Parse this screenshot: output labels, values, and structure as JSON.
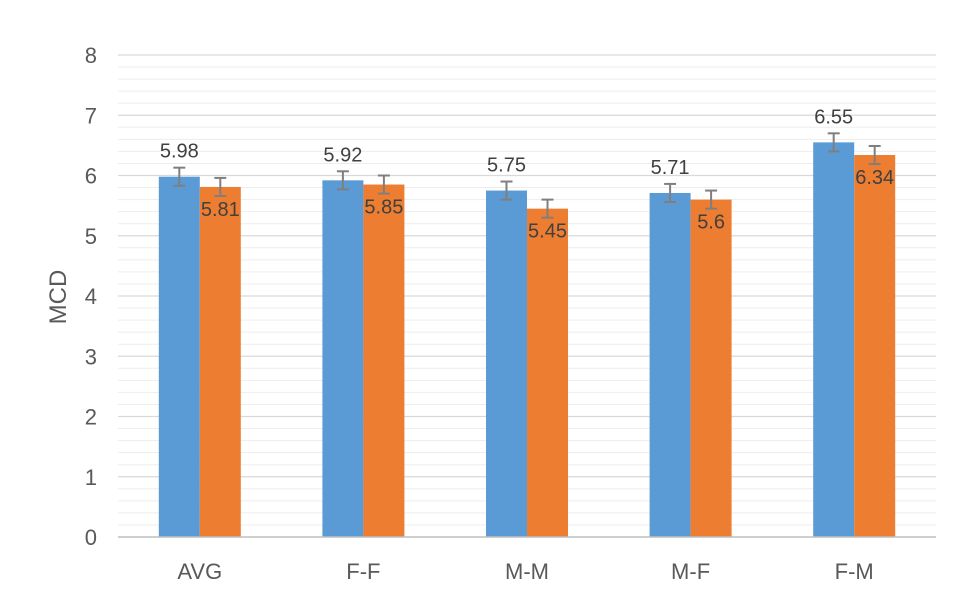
{
  "chart_data": {
    "type": "bar",
    "title": "",
    "xlabel": "",
    "ylabel": "MCD",
    "ylim": [
      0,
      8
    ],
    "yticks": [
      0,
      1,
      2,
      3,
      4,
      5,
      6,
      7,
      8
    ],
    "minor_grid_step": 0.2,
    "grid": true,
    "legend": "none",
    "categories": [
      "AVG",
      "F-F",
      "M-M",
      "M-F",
      "F-M"
    ],
    "series": [
      {
        "color": "#5B9BD5",
        "values": [
          5.98,
          5.92,
          5.75,
          5.71,
          6.55
        ],
        "data_labels": [
          "5.98",
          "5.92",
          "5.75",
          "5.71",
          "6.55"
        ],
        "error": [
          0.15,
          0.15,
          0.15,
          0.15,
          0.15
        ]
      },
      {
        "color": "#ED7D31",
        "values": [
          5.81,
          5.85,
          5.45,
          5.6,
          6.34
        ],
        "data_labels": [
          "5.81",
          "5.85",
          "5.45",
          "5.6",
          "6.34"
        ],
        "error": [
          0.15,
          0.15,
          0.15,
          0.15,
          0.15
        ]
      }
    ],
    "error_bar_color": "#7F7F7F",
    "grid_color": "#D9D9D9"
  }
}
